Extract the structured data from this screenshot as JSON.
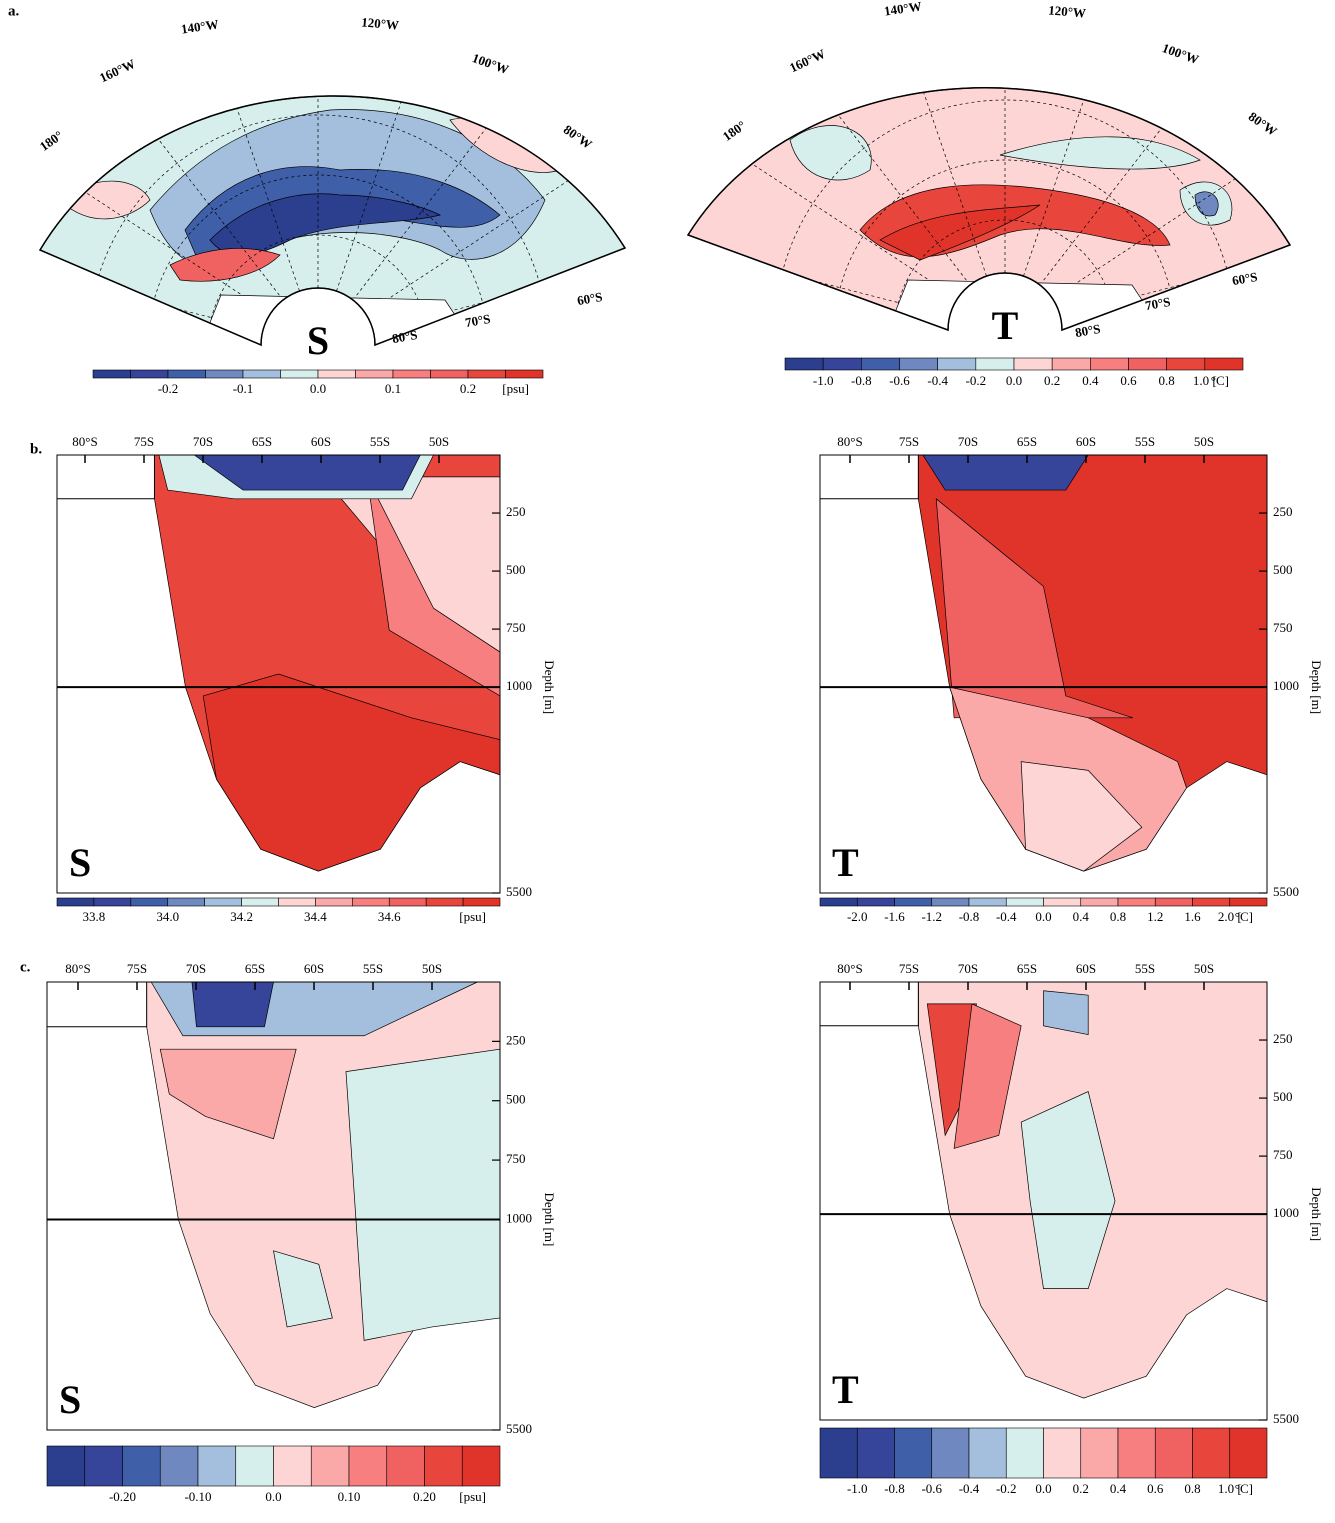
{
  "panel_labels": [
    "a.",
    "b.",
    "c."
  ],
  "palette": [
    "#2c3f8f",
    "#36449a",
    "#3f5fa8",
    "#6f89c0",
    "#a3bfdd",
    "#d6efec",
    "#fdd5d5",
    "#fba8a8",
    "#f77f7f",
    "#f06262",
    "#e8453c",
    "#e0342b"
  ],
  "maps": [
    {
      "letter": "S",
      "lon_labels": [
        "180°",
        "160°W",
        "140°W",
        "120°W",
        "100°W",
        "80°W"
      ],
      "lat_labels": [
        "60°S",
        "70°S",
        "80°S"
      ],
      "colorbar": {
        "labels": [
          null,
          "-0.2",
          null,
          "-0.1",
          null,
          "0.0",
          null,
          "0.1",
          null,
          "0.2",
          null
        ],
        "unit": "[psu]"
      }
    },
    {
      "letter": "T",
      "lon_labels": [
        "180°",
        "160°W",
        "140°W",
        "120°W",
        "100°W",
        "80°W"
      ],
      "lat_labels": [
        "60°S",
        "70°S",
        "80°S"
      ],
      "colorbar": {
        "labels": [
          "-1.0",
          "-0.8",
          "-0.6",
          "-0.4",
          "-0.2",
          "0.0",
          "0.2",
          "0.4",
          "0.6",
          "0.8",
          "1.0 ["
        ],
        "unit": "°C]"
      }
    }
  ],
  "sections": [
    {
      "letter": "S",
      "lat_labels": [
        "80°S",
        "75S",
        "70S",
        "65S",
        "60S",
        "55S",
        "50S"
      ],
      "depth_ticks": [
        250,
        500,
        750,
        1000,
        5500
      ],
      "depth_title": "Depth [m]",
      "colorbar": {
        "labels": [
          "33.8",
          null,
          "34.0",
          null,
          "34.2",
          null,
          "34.4",
          null,
          "34.6",
          null,
          null
        ],
        "unit": "[psu]"
      }
    },
    {
      "letter": "T",
      "lat_labels": [
        "80°S",
        "75S",
        "70S",
        "65S",
        "60S",
        "55S",
        "50S"
      ],
      "depth_ticks": [
        250,
        500,
        750,
        1000,
        5500
      ],
      "depth_title": "Depth [m]",
      "colorbar": {
        "labels": [
          "-2.0",
          "-1.6",
          "-1.2",
          "-0.8",
          "-0.4",
          "0.0",
          "0.4",
          "0.8",
          "1.2",
          "1.6",
          "2.0 ["
        ],
        "unit": "°C]"
      }
    },
    {
      "letter": "S",
      "lat_labels": [
        "80°S",
        "75S",
        "70S",
        "65S",
        "60S",
        "55S",
        "50S"
      ],
      "depth_ticks": [
        250,
        500,
        750,
        1000,
        5500
      ],
      "depth_title": "Depth [m]",
      "colorbar": {
        "labels": [
          null,
          "-0.20",
          null,
          "-0.10",
          null,
          "0.0",
          null,
          "0.10",
          null,
          "0.20",
          null
        ],
        "unit": "[psu]"
      }
    },
    {
      "letter": "T",
      "lat_labels": [
        "80°S",
        "75S",
        "70S",
        "65S",
        "60S",
        "55S",
        "50S"
      ],
      "depth_ticks": [
        250,
        500,
        750,
        1000,
        5500
      ],
      "depth_title": "Depth [m]",
      "colorbar": {
        "labels": [
          "-1.0",
          "-0.8",
          "-0.6",
          "-0.4",
          "-0.2",
          "0.0",
          "0.2",
          "0.4",
          "0.6",
          "0.8",
          "1.0 ["
        ],
        "unit": "°C]"
      }
    }
  ]
}
